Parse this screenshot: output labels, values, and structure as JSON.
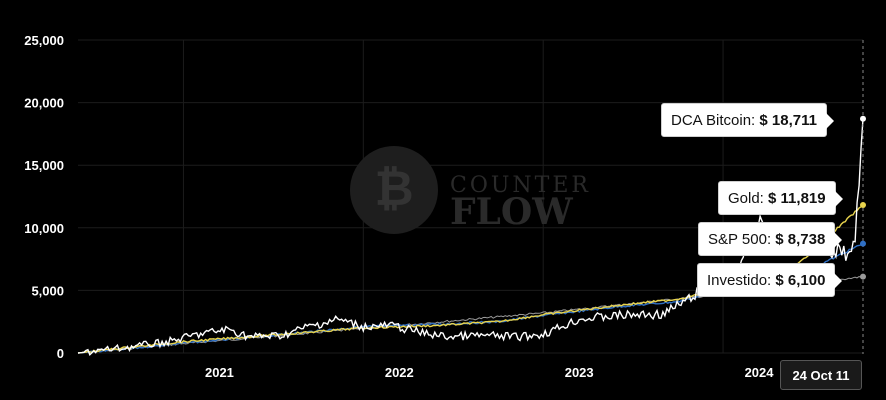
{
  "chart_data": {
    "type": "line",
    "title": "",
    "xlabel": "",
    "ylabel": "",
    "ylim": [
      0,
      25000
    ],
    "xlim": [
      "2020-06-01",
      "2024-10-11"
    ],
    "grid": true,
    "y_ticks": [
      "0",
      "5,000",
      "10,000",
      "15,000",
      "20,000",
      "25,000"
    ],
    "y_tick_values": [
      0,
      5000,
      10000,
      15000,
      20000,
      25000
    ],
    "x_ticks": [
      {
        "label": "2021",
        "date": "2021-01-01"
      },
      {
        "label": "2022",
        "date": "2022-01-01"
      },
      {
        "label": "2023",
        "date": "2023-01-01"
      },
      {
        "label": "2024",
        "date": "2024-01-01"
      }
    ],
    "series": [
      {
        "name": "Investido",
        "color": "#9a9a9a",
        "points": [
          [
            "2020-06-01",
            0
          ],
          [
            "2021-01-01",
            750
          ],
          [
            "2022-01-01",
            1950
          ],
          [
            "2023-01-01",
            3200
          ],
          [
            "2024-01-01",
            4700
          ],
          [
            "2024-10-11",
            6100
          ]
        ]
      },
      {
        "name": "S&P 500",
        "color": "#2f6fc4",
        "points": [
          [
            "2020-06-01",
            0
          ],
          [
            "2020-09-01",
            300
          ],
          [
            "2021-01-01",
            800
          ],
          [
            "2021-06-01",
            1300
          ],
          [
            "2022-01-01",
            2100
          ],
          [
            "2022-06-01",
            2300
          ],
          [
            "2022-10-01",
            2500
          ],
          [
            "2023-01-01",
            3000
          ],
          [
            "2023-06-01",
            3700
          ],
          [
            "2023-10-01",
            4100
          ],
          [
            "2024-01-01",
            5000
          ],
          [
            "2024-06-01",
            6200
          ],
          [
            "2024-10-11",
            8738
          ]
        ]
      },
      {
        "name": "Gold",
        "color": "#e8d44d",
        "points": [
          [
            "2020-06-01",
            0
          ],
          [
            "2020-09-01",
            400
          ],
          [
            "2021-01-01",
            900
          ],
          [
            "2021-06-01",
            1350
          ],
          [
            "2022-01-01",
            2000
          ],
          [
            "2022-06-01",
            2200
          ],
          [
            "2022-10-01",
            2500
          ],
          [
            "2023-01-01",
            3050
          ],
          [
            "2023-06-01",
            3800
          ],
          [
            "2023-10-01",
            4300
          ],
          [
            "2024-01-01",
            5100
          ],
          [
            "2024-06-01",
            7100
          ],
          [
            "2024-10-11",
            11819
          ]
        ]
      },
      {
        "name": "DCA Bitcoin",
        "color": "#ffffff",
        "points": [
          [
            "2020-06-01",
            0
          ],
          [
            "2020-09-01",
            400
          ],
          [
            "2020-12-01",
            900
          ],
          [
            "2021-02-01",
            1500
          ],
          [
            "2021-04-01",
            1900
          ],
          [
            "2021-05-15",
            1300
          ],
          [
            "2021-07-20",
            1400
          ],
          [
            "2021-09-01",
            2000
          ],
          [
            "2021-11-10",
            2700
          ],
          [
            "2022-01-01",
            2100
          ],
          [
            "2022-03-01",
            2200
          ],
          [
            "2022-05-01",
            1600
          ],
          [
            "2022-06-20",
            1300
          ],
          [
            "2022-09-01",
            1400
          ],
          [
            "2022-11-15",
            1300
          ],
          [
            "2023-01-01",
            1500
          ],
          [
            "2023-03-15",
            2700
          ],
          [
            "2023-06-01",
            3000
          ],
          [
            "2023-09-01",
            3100
          ],
          [
            "2023-11-01",
            4500
          ],
          [
            "2023-12-15",
            6000
          ],
          [
            "2024-01-15",
            5800
          ],
          [
            "2024-02-15",
            8000
          ],
          [
            "2024-03-12",
            10500
          ],
          [
            "2024-04-15",
            9500
          ],
          [
            "2024-05-20",
            9900
          ],
          [
            "2024-06-10",
            9600
          ],
          [
            "2024-07-05",
            8200
          ],
          [
            "2024-07-20",
            9500
          ],
          [
            "2024-08-05",
            7600
          ],
          [
            "2024-08-25",
            8500
          ],
          [
            "2024-09-06",
            7800
          ],
          [
            "2024-09-25",
            9200
          ],
          [
            "2024-10-11",
            18711
          ]
        ]
      }
    ],
    "tooltip": {
      "date": "24 Oct 11",
      "entries": [
        {
          "label": "DCA Bitcoin:",
          "value": "$ 18,711"
        },
        {
          "label": "Gold:",
          "value": "$ 11,819"
        },
        {
          "label": "S&P 500:",
          "value": "$ 8,738"
        },
        {
          "label": "Investido:",
          "value": "$ 6,100"
        }
      ]
    },
    "watermark": "COUNTER FLOW"
  }
}
